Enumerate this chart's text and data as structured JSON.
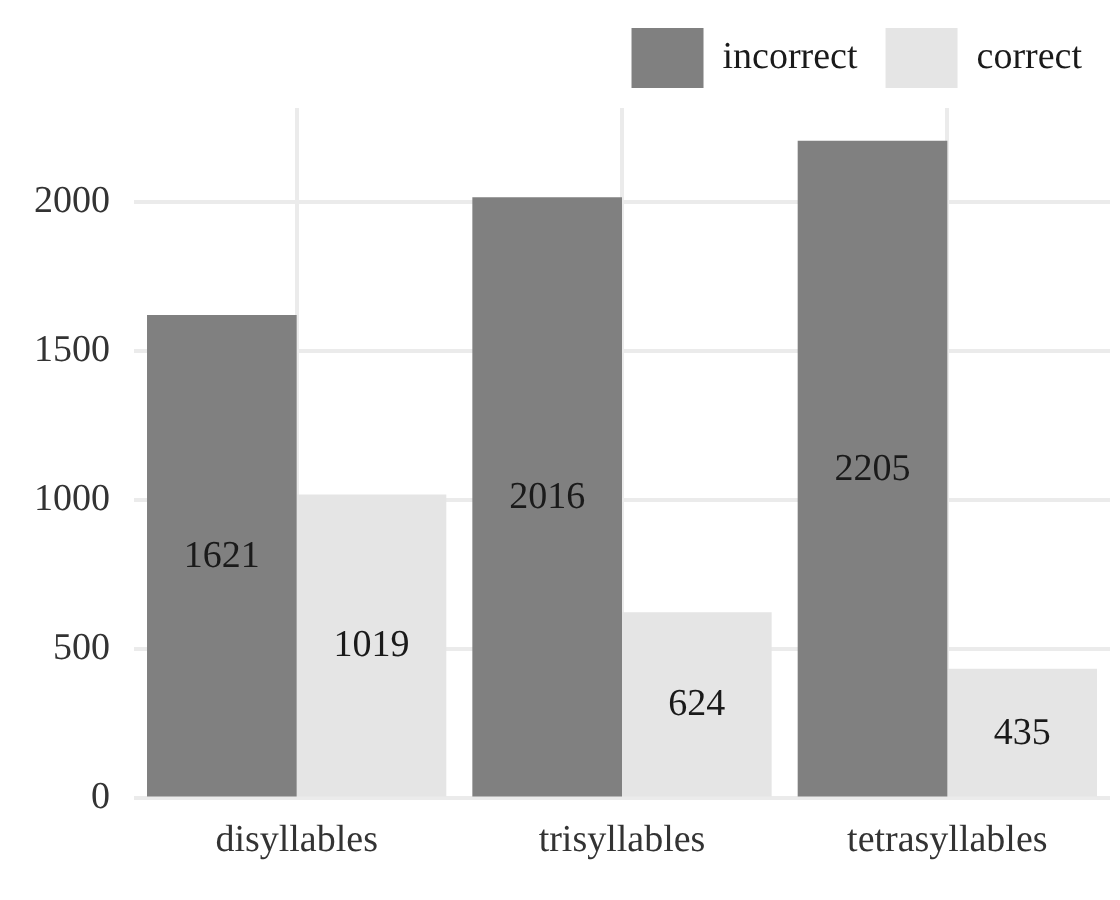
{
  "chart_data": {
    "type": "bar",
    "categories": [
      "disyllables",
      "trisyllables",
      "tetrasyllables"
    ],
    "series": [
      {
        "name": "incorrect",
        "color": "#808080",
        "values": [
          1621,
          2016,
          2205
        ]
      },
      {
        "name": "correct",
        "color": "#e5e5e5",
        "values": [
          1019,
          624,
          435
        ]
      }
    ],
    "ylim": [
      0,
      2315
    ],
    "yticks": [
      0,
      500,
      1000,
      1500,
      2000
    ],
    "grid": true,
    "legend": "top right",
    "data_labels": true
  }
}
